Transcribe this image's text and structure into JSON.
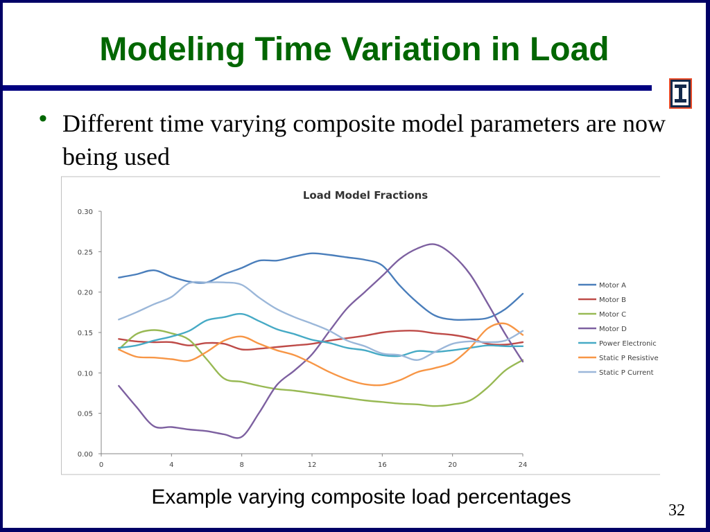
{
  "slide": {
    "title": "Modeling Time Variation in Load",
    "bullet": "Different time varying composite model parameters are now being used",
    "caption": "Example varying composite load percentages",
    "page_number": "32",
    "logo_icon": "university-block-i-logo-icon"
  },
  "chart_data": {
    "type": "line",
    "title": "Load Model Fractions",
    "xlabel": "",
    "ylabel": "",
    "x": [
      1,
      2,
      3,
      4,
      5,
      6,
      7,
      8,
      9,
      10,
      11,
      12,
      13,
      14,
      15,
      16,
      17,
      18,
      19,
      20,
      21,
      22,
      23,
      24
    ],
    "xlim": [
      0,
      24
    ],
    "ylim": [
      0,
      0.3
    ],
    "x_ticks": [
      "0",
      "4",
      "8",
      "12",
      "16",
      "20",
      "24"
    ],
    "x_tick_values": [
      0,
      4,
      8,
      12,
      16,
      20,
      24
    ],
    "y_ticks": [
      "0.00",
      "0.05",
      "0.10",
      "0.15",
      "0.20",
      "0.25",
      "0.30"
    ],
    "y_tick_values": [
      0,
      0.05,
      0.1,
      0.15,
      0.2,
      0.25,
      0.3
    ],
    "grid": false,
    "legend_position": "right",
    "series": [
      {
        "name": "Motor A",
        "color": "#4a7ebb",
        "values": [
          0.218,
          0.222,
          0.227,
          0.219,
          0.213,
          0.212,
          0.222,
          0.23,
          0.239,
          0.239,
          0.244,
          0.248,
          0.246,
          0.243,
          0.24,
          0.233,
          0.208,
          0.187,
          0.171,
          0.166,
          0.166,
          0.168,
          0.179,
          0.198
        ]
      },
      {
        "name": "Motor B",
        "color": "#be4b48",
        "values": [
          0.142,
          0.139,
          0.138,
          0.138,
          0.134,
          0.137,
          0.136,
          0.129,
          0.13,
          0.132,
          0.134,
          0.136,
          0.14,
          0.143,
          0.146,
          0.15,
          0.152,
          0.152,
          0.149,
          0.147,
          0.143,
          0.136,
          0.135,
          0.138
        ]
      },
      {
        "name": "Motor C",
        "color": "#98b954",
        "values": [
          0.129,
          0.148,
          0.153,
          0.149,
          0.141,
          0.117,
          0.093,
          0.089,
          0.084,
          0.08,
          0.078,
          0.075,
          0.072,
          0.069,
          0.066,
          0.064,
          0.062,
          0.061,
          0.059,
          0.061,
          0.066,
          0.082,
          0.103,
          0.116
        ]
      },
      {
        "name": "Motor D",
        "color": "#7d60a0",
        "values": [
          0.084,
          0.058,
          0.034,
          0.033,
          0.03,
          0.028,
          0.024,
          0.021,
          0.051,
          0.085,
          0.103,
          0.123,
          0.152,
          0.18,
          0.2,
          0.22,
          0.241,
          0.254,
          0.259,
          0.246,
          0.222,
          0.186,
          0.148,
          0.114
        ]
      },
      {
        "name": "Power Electronic",
        "color": "#46aac5",
        "values": [
          0.131,
          0.134,
          0.14,
          0.145,
          0.152,
          0.165,
          0.169,
          0.173,
          0.164,
          0.154,
          0.148,
          0.141,
          0.137,
          0.131,
          0.128,
          0.122,
          0.121,
          0.127,
          0.126,
          0.128,
          0.131,
          0.134,
          0.133,
          0.133
        ]
      },
      {
        "name": "Static P Resistive",
        "color": "#f79646",
        "values": [
          0.129,
          0.12,
          0.119,
          0.117,
          0.115,
          0.126,
          0.14,
          0.145,
          0.136,
          0.128,
          0.122,
          0.112,
          0.101,
          0.092,
          0.086,
          0.085,
          0.091,
          0.101,
          0.106,
          0.113,
          0.131,
          0.155,
          0.161,
          0.147
        ]
      },
      {
        "name": "Static P Current",
        "color": "#9bb7d9",
        "values": [
          0.166,
          0.175,
          0.185,
          0.194,
          0.211,
          0.212,
          0.212,
          0.209,
          0.193,
          0.179,
          0.169,
          0.161,
          0.152,
          0.14,
          0.133,
          0.124,
          0.122,
          0.116,
          0.126,
          0.136,
          0.139,
          0.138,
          0.14,
          0.152
        ]
      }
    ]
  }
}
